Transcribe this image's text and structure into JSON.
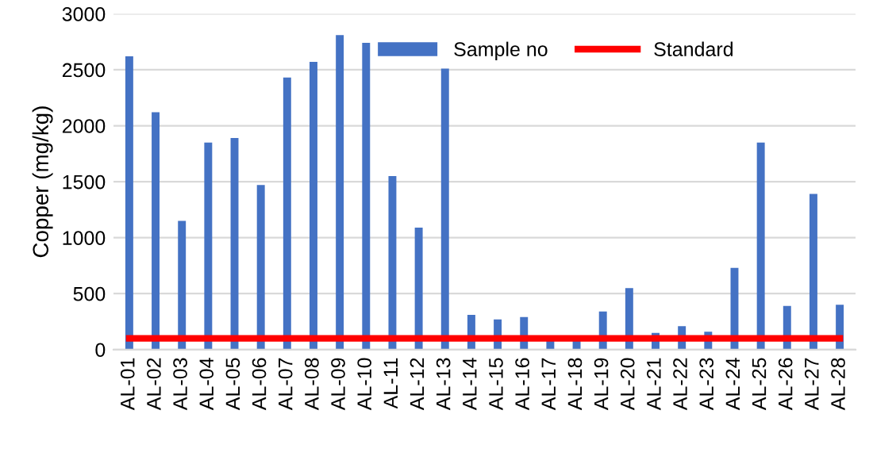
{
  "chart_data": {
    "type": "bar",
    "ylabel": "Copper (mg/kg)",
    "categories": [
      "AL-01",
      "AL-02",
      "AL-03",
      "AL-04",
      "AL-05",
      "AL-06",
      "AL-07",
      "AL-08",
      "AL-09",
      "AL-10",
      "AL-11",
      "AL-12",
      "AL-13",
      "AL-14",
      "AL-15",
      "AL-16",
      "AL-17",
      "AL-18",
      "AL-19",
      "AL-20",
      "AL-21",
      "AL-22",
      "AL-23",
      "AL-24",
      "AL-25",
      "AL-26",
      "AL-27",
      "AL-28"
    ],
    "series": [
      {
        "name": "Sample no",
        "color": "#4472c4",
        "values": [
          2620,
          2120,
          1150,
          1850,
          1890,
          1470,
          2430,
          2570,
          2810,
          2740,
          1550,
          1090,
          2510,
          310,
          270,
          290,
          80,
          80,
          340,
          550,
          150,
          210,
          160,
          730,
          1850,
          390,
          1390,
          400
        ]
      },
      {
        "name": "Standard",
        "type": "line",
        "color": "#ff0000",
        "values": [
          100,
          100,
          100,
          100,
          100,
          100,
          100,
          100,
          100,
          100,
          100,
          100,
          100,
          100,
          100,
          100,
          100,
          100,
          100,
          100,
          100,
          100,
          100,
          100,
          100,
          100,
          100,
          100
        ]
      }
    ],
    "ylim": [
      0,
      3000
    ],
    "yticks": [
      0,
      500,
      1000,
      1500,
      2000,
      2500,
      3000
    ],
    "grid": "y",
    "legend": "top right"
  }
}
